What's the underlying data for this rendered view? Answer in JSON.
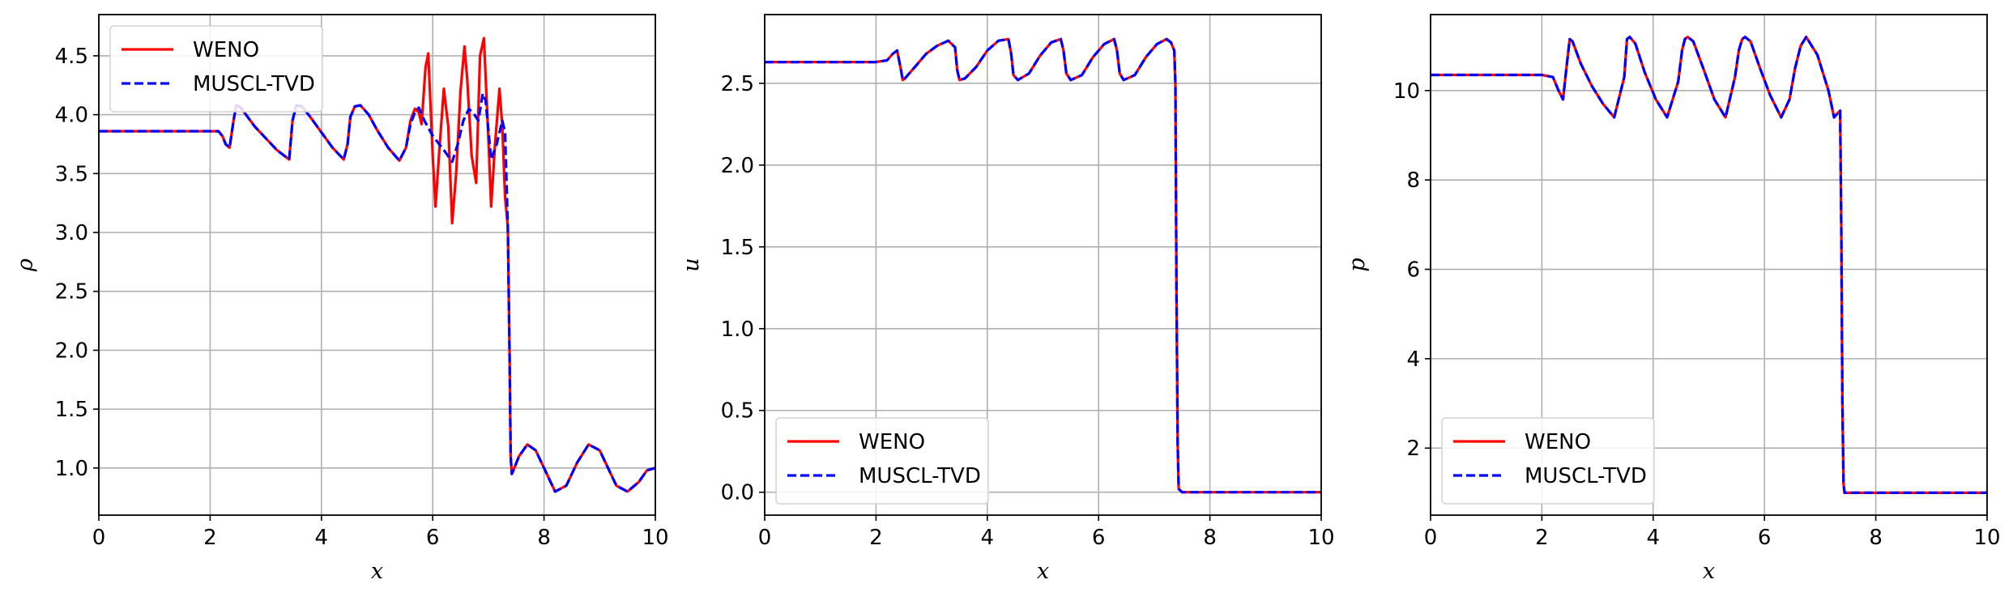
{
  "chart_data": [
    {
      "type": "line",
      "xlabel": "x",
      "ylabel": "ρ",
      "xlim": [
        0,
        10
      ],
      "ylim": [
        0.6,
        4.85
      ],
      "xticks": [
        0,
        2,
        4,
        6,
        8,
        10
      ],
      "yticks": [
        1.0,
        1.5,
        2.0,
        2.5,
        3.0,
        3.5,
        4.0,
        4.5
      ],
      "ytick_decimals": 1,
      "grid": true,
      "legend_position": "top-left",
      "series": [
        {
          "name": "WENO",
          "color": "#ff0000",
          "style": "solid",
          "x": [
            0,
            1.0,
            2.0,
            2.15,
            2.22,
            2.28,
            2.35,
            2.42,
            2.47,
            2.55,
            2.8,
            3.0,
            3.2,
            3.42,
            3.48,
            3.55,
            3.65,
            3.8,
            4.0,
            4.2,
            4.4,
            4.47,
            4.52,
            4.6,
            4.7,
            4.85,
            5.0,
            5.2,
            5.4,
            5.52,
            5.6,
            5.68,
            5.75,
            5.8,
            5.87,
            5.92,
            6.0,
            6.05,
            6.12,
            6.2,
            6.28,
            6.35,
            6.42,
            6.5,
            6.57,
            6.62,
            6.7,
            6.78,
            6.85,
            6.92,
            7.0,
            7.05,
            7.12,
            7.2,
            7.25,
            7.3,
            7.35,
            7.38,
            7.4,
            7.42,
            7.45,
            7.55,
            7.7,
            7.85,
            8.0,
            8.2,
            8.4,
            8.6,
            8.8,
            9.0,
            9.1,
            9.3,
            9.5,
            9.7,
            9.85,
            10.0
          ],
          "y": [
            3.86,
            3.86,
            3.86,
            3.86,
            3.82,
            3.75,
            3.72,
            3.95,
            4.08,
            4.06,
            3.9,
            3.8,
            3.7,
            3.62,
            3.95,
            4.08,
            4.07,
            3.98,
            3.85,
            3.72,
            3.62,
            3.75,
            3.98,
            4.07,
            4.08,
            4.0,
            3.87,
            3.72,
            3.61,
            3.72,
            3.95,
            4.05,
            4.02,
            3.92,
            4.4,
            4.52,
            3.65,
            3.22,
            3.7,
            4.22,
            3.9,
            3.08,
            3.5,
            4.2,
            4.58,
            4.3,
            3.65,
            3.42,
            4.5,
            4.65,
            3.8,
            3.22,
            3.75,
            4.22,
            3.9,
            3.3,
            3.05,
            2.0,
            1.1,
            0.95,
            0.98,
            1.1,
            1.2,
            1.15,
            1.0,
            0.8,
            0.85,
            1.05,
            1.2,
            1.15,
            1.05,
            0.85,
            0.8,
            0.88,
            0.98,
            1.0
          ]
        },
        {
          "name": "MUSCL-TVD",
          "color": "#0000ff",
          "style": "dashed",
          "x": [
            0,
            1.0,
            2.0,
            2.15,
            2.22,
            2.28,
            2.35,
            2.42,
            2.47,
            2.55,
            2.8,
            3.0,
            3.2,
            3.42,
            3.48,
            3.55,
            3.65,
            3.8,
            4.0,
            4.2,
            4.4,
            4.47,
            4.52,
            4.6,
            4.7,
            4.85,
            5.0,
            5.2,
            5.4,
            5.52,
            5.6,
            5.68,
            5.75,
            5.85,
            6.0,
            6.2,
            6.35,
            6.45,
            6.55,
            6.65,
            6.75,
            6.82,
            6.9,
            6.95,
            7.05,
            7.15,
            7.25,
            7.3,
            7.35,
            7.38,
            7.4,
            7.42,
            7.45,
            7.55,
            7.7,
            7.85,
            8.0,
            8.2,
            8.4,
            8.6,
            8.8,
            9.0,
            9.1,
            9.3,
            9.5,
            9.7,
            9.85,
            10.0
          ],
          "y": [
            3.86,
            3.86,
            3.86,
            3.86,
            3.82,
            3.75,
            3.72,
            3.95,
            4.08,
            4.06,
            3.9,
            3.8,
            3.7,
            3.62,
            3.95,
            4.08,
            4.07,
            3.98,
            3.85,
            3.72,
            3.62,
            3.75,
            3.98,
            4.07,
            4.08,
            4.0,
            3.87,
            3.72,
            3.61,
            3.72,
            3.92,
            4.02,
            4.06,
            3.95,
            3.82,
            3.7,
            3.6,
            3.75,
            3.95,
            4.05,
            4.0,
            3.95,
            4.18,
            4.12,
            3.62,
            3.75,
            3.95,
            3.85,
            3.05,
            2.0,
            1.1,
            0.95,
            0.98,
            1.1,
            1.2,
            1.15,
            1.0,
            0.8,
            0.85,
            1.05,
            1.2,
            1.15,
            1.05,
            0.85,
            0.8,
            0.88,
            0.98,
            1.0
          ]
        }
      ]
    },
    {
      "type": "line",
      "xlabel": "x",
      "ylabel": "u",
      "xlim": [
        0,
        10
      ],
      "ylim": [
        -0.14,
        2.92
      ],
      "xticks": [
        0,
        2,
        4,
        6,
        8,
        10
      ],
      "yticks": [
        0.0,
        0.5,
        1.0,
        1.5,
        2.0,
        2.5
      ],
      "ytick_decimals": 1,
      "grid": true,
      "legend_position": "bottom-left",
      "series": [
        {
          "name": "WENO",
          "color": "#ff0000",
          "style": "solid",
          "x": [
            0,
            1.0,
            2.0,
            2.2,
            2.3,
            2.38,
            2.45,
            2.48,
            2.52,
            2.7,
            2.9,
            3.1,
            3.3,
            3.42,
            3.46,
            3.5,
            3.6,
            3.8,
            4.0,
            4.2,
            4.38,
            4.43,
            4.47,
            4.55,
            4.75,
            4.95,
            5.15,
            5.32,
            5.37,
            5.42,
            5.5,
            5.7,
            5.9,
            6.1,
            6.28,
            6.33,
            6.38,
            6.45,
            6.65,
            6.85,
            7.05,
            7.22,
            7.3,
            7.36,
            7.38,
            7.4,
            7.42,
            7.44,
            7.5,
            8.0,
            9.0,
            10.0
          ],
          "y": [
            2.63,
            2.63,
            2.63,
            2.64,
            2.68,
            2.7,
            2.58,
            2.52,
            2.53,
            2.6,
            2.68,
            2.73,
            2.76,
            2.72,
            2.58,
            2.52,
            2.53,
            2.6,
            2.7,
            2.76,
            2.77,
            2.68,
            2.55,
            2.52,
            2.56,
            2.67,
            2.75,
            2.77,
            2.7,
            2.56,
            2.52,
            2.55,
            2.66,
            2.74,
            2.77,
            2.7,
            2.56,
            2.52,
            2.55,
            2.66,
            2.74,
            2.77,
            2.75,
            2.7,
            2.5,
            1.2,
            0.3,
            0.02,
            0.0,
            0.0,
            0.0,
            0.0
          ]
        },
        {
          "name": "MUSCL-TVD",
          "color": "#0000ff",
          "style": "dashed",
          "x": [
            0,
            1.0,
            2.0,
            2.2,
            2.3,
            2.38,
            2.45,
            2.48,
            2.52,
            2.7,
            2.9,
            3.1,
            3.3,
            3.42,
            3.46,
            3.5,
            3.6,
            3.8,
            4.0,
            4.2,
            4.38,
            4.43,
            4.47,
            4.55,
            4.75,
            4.95,
            5.15,
            5.32,
            5.37,
            5.42,
            5.5,
            5.7,
            5.9,
            6.1,
            6.28,
            6.33,
            6.38,
            6.45,
            6.65,
            6.85,
            7.05,
            7.22,
            7.3,
            7.36,
            7.38,
            7.4,
            7.42,
            7.44,
            7.5,
            8.0,
            9.0,
            10.0
          ],
          "y": [
            2.63,
            2.63,
            2.63,
            2.64,
            2.68,
            2.7,
            2.58,
            2.52,
            2.53,
            2.6,
            2.68,
            2.73,
            2.76,
            2.72,
            2.58,
            2.52,
            2.53,
            2.6,
            2.7,
            2.76,
            2.77,
            2.68,
            2.55,
            2.52,
            2.56,
            2.67,
            2.75,
            2.77,
            2.7,
            2.56,
            2.52,
            2.55,
            2.66,
            2.74,
            2.77,
            2.7,
            2.56,
            2.52,
            2.55,
            2.66,
            2.74,
            2.77,
            2.75,
            2.7,
            2.5,
            1.2,
            0.3,
            0.02,
            0.0,
            0.0,
            0.0,
            0.0
          ]
        }
      ]
    },
    {
      "type": "line",
      "xlabel": "x",
      "ylabel": "p",
      "xlim": [
        0,
        10
      ],
      "ylim": [
        0.5,
        11.7
      ],
      "xticks": [
        0,
        2,
        4,
        6,
        8,
        10
      ],
      "yticks": [
        2,
        4,
        6,
        8,
        10
      ],
      "ytick_decimals": 0,
      "grid": true,
      "legend_position": "bottom-left",
      "series": [
        {
          "name": "WENO",
          "color": "#ff0000",
          "style": "solid",
          "x": [
            0,
            1.0,
            2.0,
            2.2,
            2.3,
            2.38,
            2.45,
            2.5,
            2.55,
            2.7,
            2.9,
            3.1,
            3.3,
            3.48,
            3.53,
            3.58,
            3.68,
            3.85,
            4.05,
            4.25,
            4.45,
            4.52,
            4.57,
            4.62,
            4.72,
            4.9,
            5.1,
            5.3,
            5.47,
            5.54,
            5.6,
            5.65,
            5.75,
            5.92,
            6.1,
            6.3,
            6.45,
            6.55,
            6.65,
            6.75,
            6.95,
            7.15,
            7.25,
            7.32,
            7.36,
            7.38,
            7.4,
            7.42,
            7.44,
            7.5,
            8.0,
            9.0,
            10.0
          ],
          "y": [
            10.35,
            10.35,
            10.35,
            10.3,
            10.0,
            9.8,
            10.6,
            11.15,
            11.1,
            10.6,
            10.1,
            9.7,
            9.4,
            10.3,
            11.15,
            11.2,
            11.05,
            10.4,
            9.8,
            9.4,
            10.2,
            10.9,
            11.15,
            11.2,
            11.1,
            10.5,
            9.8,
            9.4,
            10.3,
            10.9,
            11.15,
            11.2,
            11.1,
            10.5,
            9.9,
            9.4,
            9.8,
            10.5,
            11.0,
            11.2,
            10.8,
            10.0,
            9.4,
            9.5,
            9.55,
            7.0,
            3.0,
            1.2,
            1.0,
            1.0,
            1.0,
            1.0,
            1.0
          ]
        },
        {
          "name": "MUSCL-TVD",
          "color": "#0000ff",
          "style": "dashed",
          "x": [
            0,
            1.0,
            2.0,
            2.2,
            2.3,
            2.38,
            2.45,
            2.5,
            2.55,
            2.7,
            2.9,
            3.1,
            3.3,
            3.48,
            3.53,
            3.58,
            3.68,
            3.85,
            4.05,
            4.25,
            4.45,
            4.52,
            4.57,
            4.62,
            4.72,
            4.9,
            5.1,
            5.3,
            5.47,
            5.54,
            5.6,
            5.65,
            5.75,
            5.92,
            6.1,
            6.3,
            6.45,
            6.55,
            6.65,
            6.75,
            6.95,
            7.15,
            7.25,
            7.32,
            7.36,
            7.38,
            7.4,
            7.42,
            7.44,
            7.5,
            8.0,
            9.0,
            10.0
          ],
          "y": [
            10.35,
            10.35,
            10.35,
            10.3,
            10.0,
            9.8,
            10.6,
            11.15,
            11.1,
            10.6,
            10.1,
            9.7,
            9.4,
            10.3,
            11.15,
            11.2,
            11.05,
            10.4,
            9.8,
            9.4,
            10.2,
            10.9,
            11.15,
            11.2,
            11.1,
            10.5,
            9.8,
            9.4,
            10.3,
            10.9,
            11.15,
            11.2,
            11.1,
            10.5,
            9.9,
            9.4,
            9.8,
            10.5,
            11.0,
            11.2,
            10.8,
            10.0,
            9.4,
            9.5,
            9.55,
            7.0,
            3.0,
            1.2,
            1.0,
            1.0,
            1.0,
            1.0,
            1.0
          ]
        }
      ]
    }
  ]
}
